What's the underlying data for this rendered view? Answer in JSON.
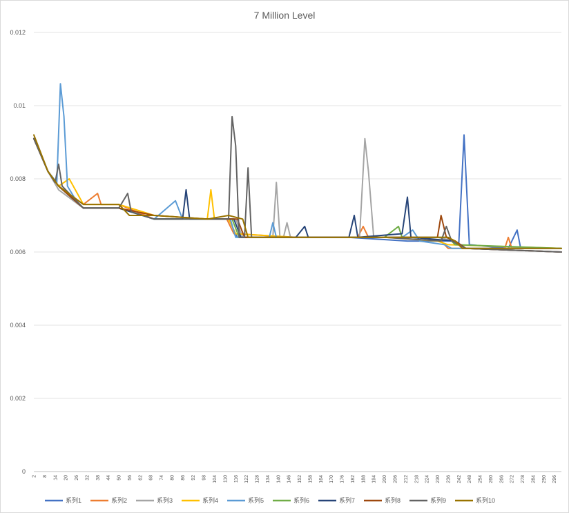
{
  "chart_data": {
    "type": "line",
    "title": "7 Million Level",
    "xlabel": "",
    "ylabel": "",
    "ylim": [
      0,
      0.012
    ],
    "y_ticks": [
      "0",
      "0.002",
      "0.004",
      "0.006",
      "0.008",
      "0.01",
      "0.012"
    ],
    "x_range": [
      2,
      300
    ],
    "x_tick_labels": [
      "2",
      "8",
      "14",
      "20",
      "26",
      "32",
      "38",
      "44",
      "50",
      "56",
      "62",
      "68",
      "74",
      "80",
      "86",
      "92",
      "98",
      "104",
      "110",
      "116",
      "122",
      "128",
      "134",
      "140",
      "146",
      "152",
      "158",
      "164",
      "170",
      "176",
      "182",
      "188",
      "194",
      "200",
      "206",
      "212",
      "218",
      "224",
      "230",
      "236",
      "242",
      "248",
      "254",
      "260",
      "266",
      "272",
      "278",
      "284",
      "290",
      "296"
    ],
    "grid": true,
    "legend_position": "bottom",
    "series": [
      {
        "name": "系列1",
        "color": "#4472C4",
        "points": [
          [
            2,
            0.0091
          ],
          [
            10,
            0.0082
          ],
          [
            16,
            0.0078
          ],
          [
            30,
            0.0072
          ],
          [
            50,
            0.0072
          ],
          [
            70,
            0.0069
          ],
          [
            100,
            0.0069
          ],
          [
            112,
            0.0069
          ],
          [
            117,
            0.0064
          ],
          [
            150,
            0.0064
          ],
          [
            180,
            0.0064
          ],
          [
            213,
            0.0063
          ],
          [
            240,
            0.0063
          ],
          [
            242,
            0.0062
          ],
          [
            245,
            0.0092
          ],
          [
            248,
            0.0062
          ],
          [
            270,
            0.0061
          ],
          [
            275,
            0.0066
          ],
          [
            277,
            0.0061
          ],
          [
            300,
            0.0061
          ]
        ]
      },
      {
        "name": "系列2",
        "color": "#ED7D31",
        "points": [
          [
            2,
            0.0091
          ],
          [
            10,
            0.0082
          ],
          [
            16,
            0.0078
          ],
          [
            30,
            0.0073
          ],
          [
            38,
            0.0076
          ],
          [
            40,
            0.0073
          ],
          [
            50,
            0.0073
          ],
          [
            70,
            0.0069
          ],
          [
            100,
            0.0069
          ],
          [
            111,
            0.0069
          ],
          [
            115,
            0.0065
          ],
          [
            150,
            0.0064
          ],
          [
            185,
            0.0064
          ],
          [
            188,
            0.0067
          ],
          [
            191,
            0.0064
          ],
          [
            220,
            0.0064
          ],
          [
            232,
            0.0063
          ],
          [
            236,
            0.0061
          ],
          [
            268,
            0.0061
          ],
          [
            270,
            0.0064
          ],
          [
            272,
            0.0061
          ],
          [
            300,
            0.0061
          ]
        ]
      },
      {
        "name": "系列3",
        "color": "#A5A5A5",
        "points": [
          [
            2,
            0.0091
          ],
          [
            10,
            0.0082
          ],
          [
            16,
            0.0077
          ],
          [
            30,
            0.0072
          ],
          [
            50,
            0.0072
          ],
          [
            70,
            0.0069
          ],
          [
            100,
            0.0069
          ],
          [
            116,
            0.0069
          ],
          [
            120,
            0.0064
          ],
          [
            137,
            0.0064
          ],
          [
            139,
            0.0079
          ],
          [
            141,
            0.0064
          ],
          [
            143,
            0.0064
          ],
          [
            145,
            0.0068
          ],
          [
            147,
            0.0064
          ],
          [
            186,
            0.0064
          ],
          [
            189,
            0.0091
          ],
          [
            191,
            0.0082
          ],
          [
            194,
            0.0064
          ],
          [
            230,
            0.0064
          ],
          [
            240,
            0.0063
          ],
          [
            244,
            0.0061
          ],
          [
            300,
            0.0061
          ]
        ]
      },
      {
        "name": "系列4",
        "color": "#FFC000",
        "points": [
          [
            2,
            0.0091
          ],
          [
            10,
            0.0082
          ],
          [
            16,
            0.0078
          ],
          [
            22,
            0.008
          ],
          [
            30,
            0.0073
          ],
          [
            50,
            0.0073
          ],
          [
            70,
            0.007
          ],
          [
            100,
            0.0069
          ],
          [
            102,
            0.0077
          ],
          [
            104,
            0.0069
          ],
          [
            112,
            0.0069
          ],
          [
            116,
            0.0065
          ],
          [
            150,
            0.0064
          ],
          [
            200,
            0.0064
          ],
          [
            230,
            0.0063
          ],
          [
            236,
            0.0062
          ],
          [
            300,
            0.0061
          ]
        ]
      },
      {
        "name": "系列5",
        "color": "#5B9BD5",
        "points": [
          [
            2,
            0.0091
          ],
          [
            10,
            0.0082
          ],
          [
            15,
            0.0079
          ],
          [
            17,
            0.0106
          ],
          [
            19,
            0.0097
          ],
          [
            21,
            0.0078
          ],
          [
            26,
            0.0074
          ],
          [
            30,
            0.0072
          ],
          [
            50,
            0.0072
          ],
          [
            70,
            0.0069
          ],
          [
            82,
            0.0074
          ],
          [
            86,
            0.0069
          ],
          [
            100,
            0.0069
          ],
          [
            113,
            0.0069
          ],
          [
            116,
            0.0064
          ],
          [
            135,
            0.0064
          ],
          [
            137,
            0.0068
          ],
          [
            139,
            0.0064
          ],
          [
            210,
            0.0064
          ],
          [
            216,
            0.0066
          ],
          [
            220,
            0.0063
          ],
          [
            234,
            0.0062
          ],
          [
            238,
            0.0061
          ],
          [
            300,
            0.0061
          ]
        ]
      },
      {
        "name": "系列6",
        "color": "#70AD47",
        "points": [
          [
            2,
            0.0091
          ],
          [
            10,
            0.0082
          ],
          [
            16,
            0.0078
          ],
          [
            30,
            0.0072
          ],
          [
            50,
            0.0072
          ],
          [
            70,
            0.0069
          ],
          [
            100,
            0.0069
          ],
          [
            114,
            0.0069
          ],
          [
            118,
            0.0064
          ],
          [
            150,
            0.0064
          ],
          [
            200,
            0.0064
          ],
          [
            208,
            0.0067
          ],
          [
            210,
            0.0064
          ],
          [
            236,
            0.0064
          ],
          [
            240,
            0.0062
          ],
          [
            300,
            0.0061
          ]
        ]
      },
      {
        "name": "系列7",
        "color": "#264478",
        "points": [
          [
            2,
            0.0091
          ],
          [
            10,
            0.0082
          ],
          [
            16,
            0.0078
          ],
          [
            30,
            0.0072
          ],
          [
            50,
            0.0072
          ],
          [
            70,
            0.0069
          ],
          [
            86,
            0.0069
          ],
          [
            88,
            0.0077
          ],
          [
            90,
            0.0069
          ],
          [
            100,
            0.0069
          ],
          [
            115,
            0.0069
          ],
          [
            119,
            0.0064
          ],
          [
            150,
            0.0064
          ],
          [
            155,
            0.0067
          ],
          [
            157,
            0.0064
          ],
          [
            180,
            0.0064
          ],
          [
            183,
            0.007
          ],
          [
            185,
            0.0064
          ],
          [
            210,
            0.0065
          ],
          [
            213,
            0.0075
          ],
          [
            215,
            0.0064
          ],
          [
            240,
            0.0063
          ],
          [
            246,
            0.0061
          ],
          [
            300,
            0.006
          ]
        ]
      },
      {
        "name": "系列8",
        "color": "#9E480E",
        "points": [
          [
            2,
            0.0091
          ],
          [
            10,
            0.0082
          ],
          [
            16,
            0.0078
          ],
          [
            30,
            0.0072
          ],
          [
            50,
            0.0072
          ],
          [
            70,
            0.007
          ],
          [
            100,
            0.0069
          ],
          [
            117,
            0.0069
          ],
          [
            121,
            0.0064
          ],
          [
            150,
            0.0064
          ],
          [
            200,
            0.0064
          ],
          [
            225,
            0.0064
          ],
          [
            230,
            0.0064
          ],
          [
            232,
            0.007
          ],
          [
            235,
            0.0064
          ],
          [
            240,
            0.0063
          ],
          [
            246,
            0.0061
          ],
          [
            300,
            0.006
          ]
        ]
      },
      {
        "name": "系列9",
        "color": "#636363",
        "points": [
          [
            2,
            0.0091
          ],
          [
            10,
            0.0082
          ],
          [
            14,
            0.0079
          ],
          [
            16,
            0.0084
          ],
          [
            18,
            0.0078
          ],
          [
            30,
            0.0072
          ],
          [
            50,
            0.0072
          ],
          [
            55,
            0.0076
          ],
          [
            57,
            0.0071
          ],
          [
            70,
            0.0069
          ],
          [
            100,
            0.0069
          ],
          [
            112,
            0.0069
          ],
          [
            114,
            0.0097
          ],
          [
            116,
            0.0089
          ],
          [
            118,
            0.0064
          ],
          [
            121,
            0.0064
          ],
          [
            123,
            0.0083
          ],
          [
            125,
            0.0064
          ],
          [
            200,
            0.0064
          ],
          [
            232,
            0.0063
          ],
          [
            235,
            0.0067
          ],
          [
            238,
            0.0063
          ],
          [
            246,
            0.0061
          ],
          [
            300,
            0.006
          ]
        ]
      },
      {
        "name": "系列10",
        "color": "#997300",
        "points": [
          [
            2,
            0.0092
          ],
          [
            10,
            0.0082
          ],
          [
            16,
            0.0078
          ],
          [
            30,
            0.0073
          ],
          [
            50,
            0.0073
          ],
          [
            56,
            0.007
          ],
          [
            70,
            0.007
          ],
          [
            100,
            0.0069
          ],
          [
            112,
            0.007
          ],
          [
            120,
            0.0069
          ],
          [
            123,
            0.0064
          ],
          [
            150,
            0.0064
          ],
          [
            200,
            0.0064
          ],
          [
            236,
            0.0064
          ],
          [
            240,
            0.0063
          ],
          [
            244,
            0.0061
          ],
          [
            300,
            0.0061
          ]
        ]
      }
    ]
  }
}
